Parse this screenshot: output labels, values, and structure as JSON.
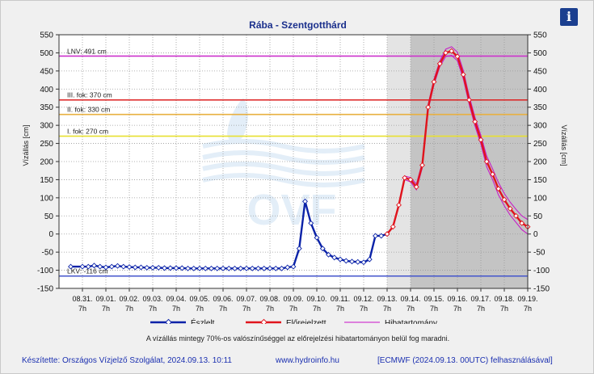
{
  "title": "Rába - Szentgotthárd",
  "info_icon": "info-icon",
  "y_axis_label": "Vízállás [cm]",
  "note": "A vízállás mintegy 70%-os valószínűséggel az előrejelzési hibatartományon belül fog maradni.",
  "footer": {
    "left": "Készítette: Országos Vízjelző Szolgálat, 2024.09.13. 10:11",
    "center": "www.hydroinfo.hu",
    "right": "[ECMWF (2024.09.13. 00UTC) felhasználásával]"
  },
  "watermark": "OVF",
  "colors": {
    "observed": "#0a22a8",
    "forecast": "#e0141c",
    "error_band": "#c810c8",
    "lnv": "#cc33cc",
    "level3": "#dd2020",
    "level2": "#e8b040",
    "level1": "#e8e030",
    "lkv": "#4455cc"
  },
  "chart_data": {
    "type": "line",
    "ylim": [
      -150,
      550
    ],
    "yticks": [
      -150,
      -100,
      -50,
      0,
      50,
      100,
      150,
      200,
      250,
      300,
      350,
      400,
      450,
      500,
      550
    ],
    "x_tick_labels": [
      "08.31.",
      "09.01.",
      "09.02.",
      "09.03.",
      "09.04.",
      "09.05.",
      "09.06.",
      "09.07.",
      "09.08.",
      "09.09.",
      "09.10.",
      "09.11.",
      "09.12.",
      "09.13.",
      "09.14.",
      "09.15.",
      "09.16.",
      "09.17.",
      "09.18.",
      "09.19."
    ],
    "x_tick_sub": "7h",
    "reference_lines": [
      {
        "label": "LNV: 491 cm",
        "value": 491,
        "color_key": "lnv"
      },
      {
        "label": "III. fok: 370 cm",
        "value": 370,
        "color_key": "level3"
      },
      {
        "label": "II. fok: 330 cm",
        "value": 330,
        "color_key": "level2"
      },
      {
        "label": "I. fok: 270 cm",
        "value": 270,
        "color_key": "level1"
      },
      {
        "label": "LKV: -116 cm",
        "value": -116,
        "color_key": "lkv"
      }
    ],
    "shaded_regions": [
      {
        "from_day": 13,
        "to_day": 14,
        "shade": "light"
      },
      {
        "from_day": 14,
        "to_day": 19,
        "shade": "dark"
      }
    ],
    "legend": [
      "Észlelt",
      "Előrejelzett",
      "Hibatartomány"
    ],
    "series": [
      {
        "name": "Észlelt",
        "x_days": [
          -0.5,
          0,
          0.25,
          0.5,
          0.75,
          1,
          1.25,
          1.5,
          1.75,
          2,
          2.25,
          2.5,
          2.75,
          3,
          3.25,
          3.5,
          3.75,
          4,
          4.25,
          4.5,
          4.75,
          5,
          5.25,
          5.5,
          5.75,
          6,
          6.25,
          6.5,
          6.75,
          7,
          7.25,
          7.5,
          7.75,
          8,
          8.25,
          8.5,
          8.75,
          9,
          9.25,
          9.5,
          9.75,
          10,
          10.25,
          10.5,
          10.75,
          11,
          11.25,
          11.5,
          11.75,
          12,
          12.25,
          12.5,
          12.75,
          13
        ],
        "values": [
          -90,
          -90,
          -90,
          -87,
          -90,
          -92,
          -90,
          -88,
          -90,
          -91,
          -92,
          -92,
          -93,
          -93,
          -93,
          -94,
          -94,
          -94,
          -94,
          -95,
          -95,
          -95,
          -95,
          -95,
          -95,
          -95,
          -95,
          -95,
          -95,
          -95,
          -95,
          -95,
          -95,
          -95,
          -95,
          -95,
          -92,
          -90,
          -40,
          90,
          30,
          -10,
          -40,
          -57,
          -65,
          -70,
          -74,
          -76,
          -77,
          -78,
          -70,
          -5,
          -5,
          0
        ]
      },
      {
        "name": "Előrejelzett",
        "x_days": [
          13,
          13.25,
          13.5,
          13.75,
          14,
          14.25,
          14.5,
          14.75,
          15,
          15.25,
          15.5,
          15.75,
          16,
          16.25,
          16.5,
          16.75,
          17,
          17.25,
          17.5,
          17.75,
          18,
          18.25,
          18.5,
          18.75,
          19
        ],
        "values": [
          0,
          20,
          80,
          155,
          150,
          130,
          190,
          350,
          420,
          470,
          500,
          505,
          490,
          440,
          370,
          310,
          260,
          200,
          165,
          125,
          95,
          70,
          50,
          30,
          20
        ]
      },
      {
        "name": "Hibatartomány",
        "x_days": [
          13,
          13.25,
          13.5,
          13.75,
          14,
          14.25,
          14.5,
          14.75,
          15,
          15.25,
          15.5,
          15.75,
          16,
          16.25,
          16.5,
          16.75,
          17,
          17.25,
          17.5,
          17.75,
          18,
          18.25,
          18.5,
          18.75,
          19
        ],
        "upper": [
          0,
          22,
          85,
          160,
          156,
          138,
          198,
          358,
          428,
          478,
          510,
          517,
          502,
          452,
          382,
          322,
          272,
          215,
          180,
          142,
          112,
          88,
          68,
          50,
          40
        ],
        "lower": [
          0,
          18,
          75,
          150,
          144,
          122,
          182,
          342,
          412,
          462,
          490,
          493,
          478,
          428,
          358,
          298,
          248,
          185,
          150,
          108,
          78,
          52,
          32,
          12,
          0
        ]
      }
    ]
  }
}
